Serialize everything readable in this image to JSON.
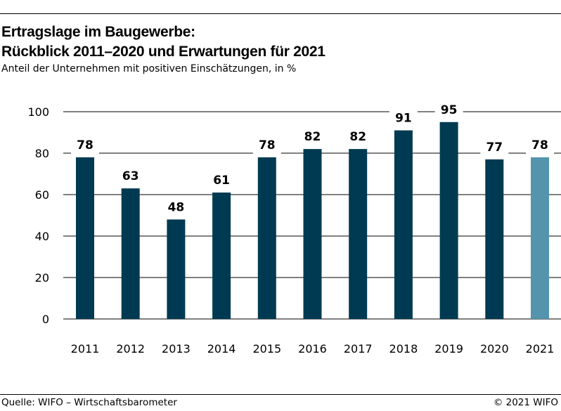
{
  "header": {
    "title_line1": "Ertragslage im Baugewerbe:",
    "title_line2": "Rückblick 2011–2020 und Erwartungen für 2021",
    "subtitle": "Anteil der Unternehmen mit positiven Einschätzungen, in %"
  },
  "footer": {
    "source": "Quelle: WIFO – Wirtschaftsbarometer",
    "copyright": "© 2021 WIFO"
  },
  "chart_data": {
    "type": "bar",
    "title": "Ertragslage im Baugewerbe: Rückblick 2011–2020 und Erwartungen für 2021",
    "subtitle": "Anteil der Unternehmen mit positiven Einschätzungen, in %",
    "categories": [
      "2011",
      "2012",
      "2013",
      "2014",
      "2015",
      "2016",
      "2017",
      "2018",
      "2019",
      "2020",
      "2021"
    ],
    "values": [
      78,
      63,
      48,
      61,
      78,
      82,
      82,
      91,
      95,
      77,
      78
    ],
    "ylim": [
      0,
      100
    ],
    "yticks": [
      0,
      20,
      40,
      60,
      80,
      100
    ],
    "grid": true,
    "legend": "none",
    "colors": {
      "actual": "#003a52",
      "expected": "#5494ad",
      "grid": "#000000"
    },
    "expected_categories": [
      "2021"
    ]
  }
}
